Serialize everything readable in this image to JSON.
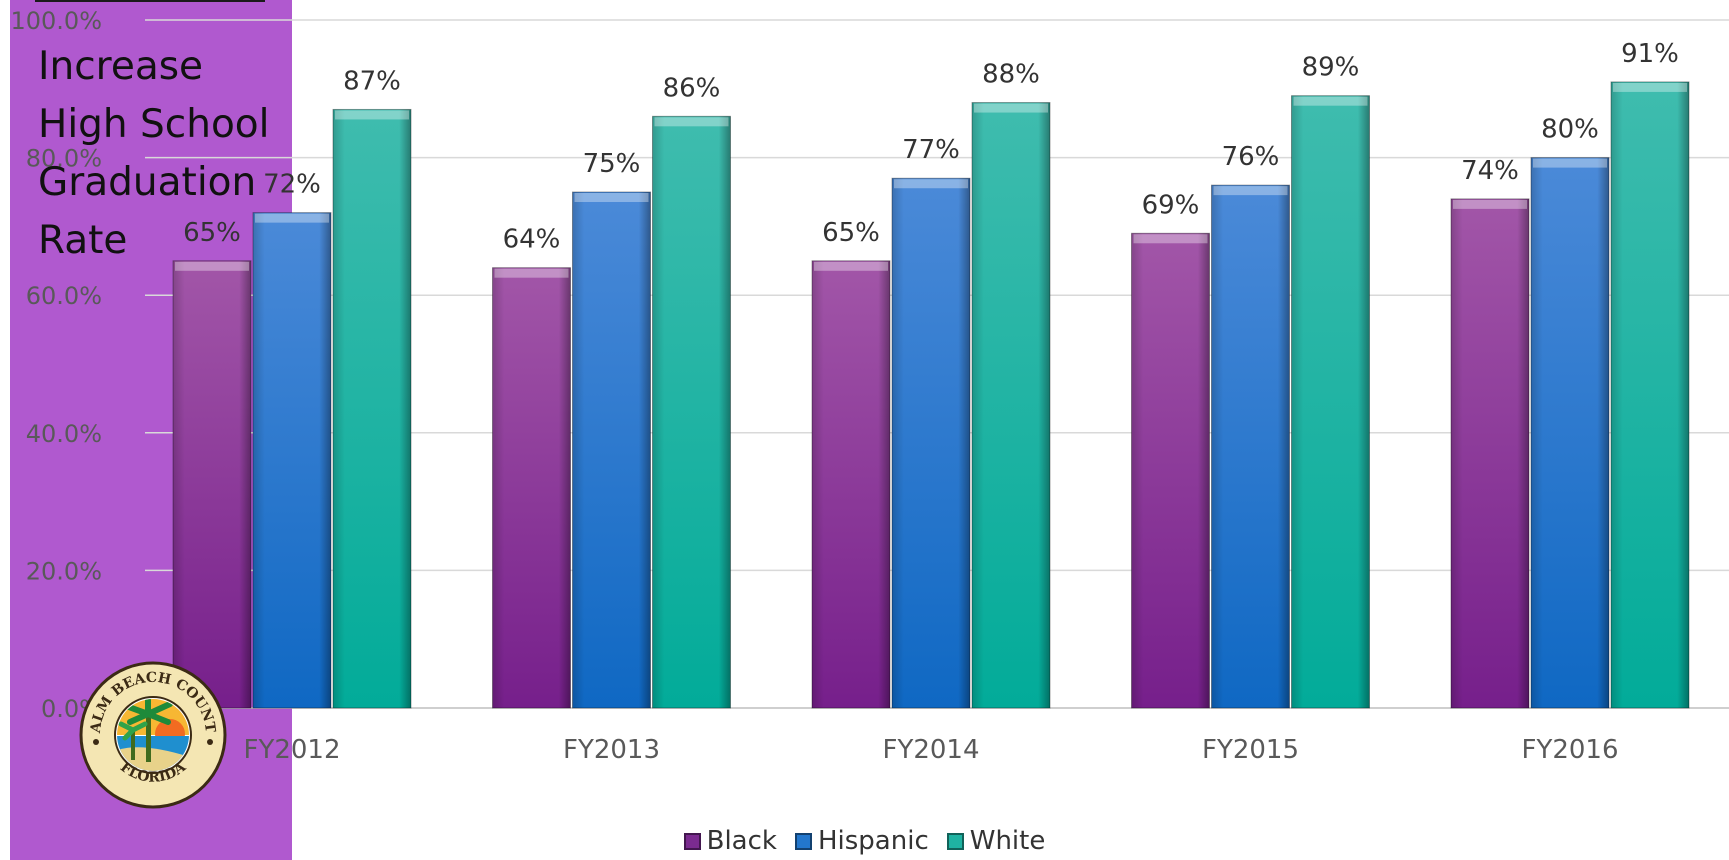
{
  "slide_title_lines": [
    "Increase",
    "High School",
    "Graduation",
    "Rate"
  ],
  "colors": {
    "sidebar": "#b059cf",
    "black_series": "#7b2b90",
    "hispanic_series": "#2377cd",
    "white_series": "#1fb3a2",
    "gridline": "#d9d9d9",
    "axis_text": "#595959",
    "label_text": "#333333"
  },
  "logo": {
    "text_top": "PALM BEACH COUNTY",
    "text_bottom": "FLORIDA",
    "icon": "palm-tree-seal-icon"
  },
  "chart_data": {
    "type": "bar",
    "title": "",
    "xlabel": "",
    "ylabel": "",
    "categories": [
      "FY2012",
      "FY2013",
      "FY2014",
      "FY2015",
      "FY2016"
    ],
    "series": [
      {
        "name": "Black",
        "values": [
          65,
          64,
          65,
          69,
          74
        ],
        "labels": [
          "65%",
          "64%",
          "65%",
          "69%",
          "74%"
        ]
      },
      {
        "name": "Hispanic",
        "values": [
          72,
          75,
          77,
          76,
          80
        ],
        "labels": [
          "72%",
          "75%",
          "77%",
          "76%",
          "80%"
        ]
      },
      {
        "name": "White",
        "values": [
          87,
          86,
          88,
          89,
          91
        ],
        "labels": [
          "87%",
          "86%",
          "88%",
          "89%",
          "91%"
        ]
      }
    ],
    "ylim": [
      0,
      100
    ],
    "yticks": [
      0,
      20,
      40,
      60,
      80,
      100
    ],
    "ytick_labels": [
      "0.0%",
      "20.0%",
      "40.0%",
      "60.0%",
      "80.0%",
      "100.0%"
    ],
    "grid": true,
    "legend_position": "bottom"
  }
}
